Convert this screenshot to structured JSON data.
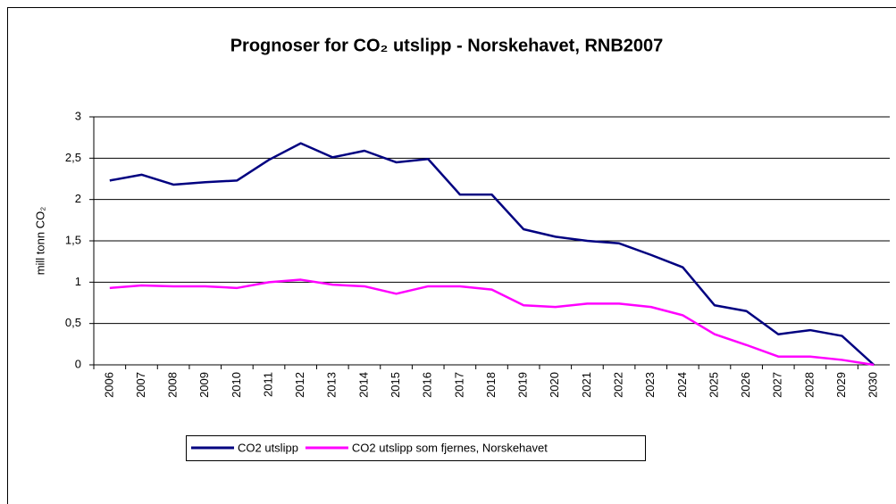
{
  "chart_data": {
    "type": "line",
    "title": "Prognoser for CO₂ utslipp - Norskehavet, RNB2007",
    "y_label": "mill tonn CO₂",
    "categories": [
      "2006",
      "2007",
      "2008",
      "2009",
      "2010",
      "2011",
      "2012",
      "2013",
      "2014",
      "2015",
      "2016",
      "2017",
      "2018",
      "2019",
      "2020",
      "2021",
      "2022",
      "2023",
      "2024",
      "2025",
      "2026",
      "2027",
      "2028",
      "2029",
      "2030"
    ],
    "series": [
      {
        "name": "CO2 utslipp",
        "color": "#000080",
        "values": [
          2.23,
          2.3,
          2.18,
          2.21,
          2.23,
          2.48,
          2.68,
          2.51,
          2.59,
          2.45,
          2.49,
          2.06,
          2.06,
          1.64,
          1.55,
          1.5,
          1.47,
          1.33,
          1.18,
          0.72,
          0.65,
          0.37,
          0.42,
          0.35,
          0
        ]
      },
      {
        "name": "CO2 utslipp som fjernes, Norskehavet",
        "color": "#ff00ff",
        "values": [
          0.93,
          0.96,
          0.95,
          0.95,
          0.93,
          1.0,
          1.03,
          0.97,
          0.95,
          0.86,
          0.95,
          0.95,
          0.91,
          0.72,
          0.7,
          0.74,
          0.74,
          0.7,
          0.6,
          0.37,
          0.24,
          0.1,
          0.1,
          0.06,
          0
        ]
      }
    ],
    "ylim": [
      0,
      3
    ],
    "yticks": [
      0,
      {
        "value": 0.5,
        "label": "0,5"
      },
      1,
      {
        "value": 1.5,
        "label": "1,5"
      },
      2,
      {
        "value": 2.5,
        "label": "2,5"
      },
      3
    ],
    "grid": true,
    "legend": "bottom"
  }
}
